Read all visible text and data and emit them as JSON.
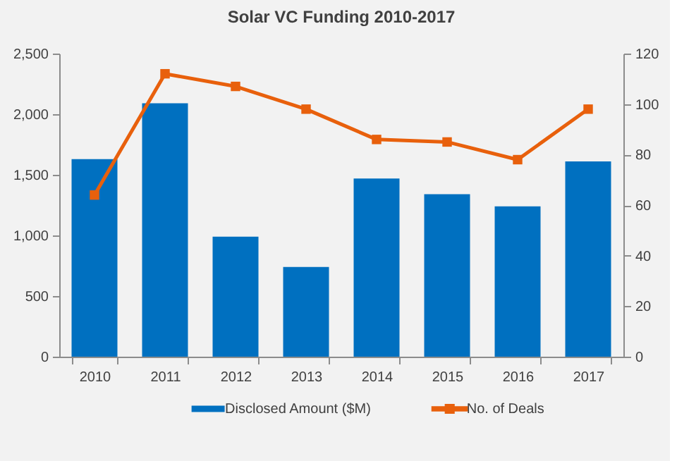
{
  "chart_data": {
    "type": "bar",
    "title": "Solar VC Funding 2010-2017",
    "categories": [
      "2010",
      "2011",
      "2012",
      "2013",
      "2014",
      "2015",
      "2016",
      "2017"
    ],
    "series": [
      {
        "name": "Disclosed Amount ($M)",
        "color": "#0070c0",
        "values": [
          1630,
          2090,
          990,
          740,
          1470,
          1340,
          1240,
          1610
        ]
      },
      {
        "name": "No. of Deals",
        "type": "line",
        "axis": "y2",
        "color": "#e8600c",
        "marker": "square",
        "values": [
          64,
          112,
          107,
          98,
          86,
          85,
          78,
          98
        ]
      }
    ],
    "ylim": [
      0,
      2500
    ],
    "yticks": [
      0,
      500,
      {
        "value": 1000,
        "label": "1,000"
      },
      {
        "value": 1500,
        "label": "1,500"
      },
      {
        "value": 2000,
        "label": "2,000"
      },
      {
        "value": 2500,
        "label": "2,500"
      }
    ],
    "y2lim": [
      0,
      120
    ],
    "y2ticks": [
      0,
      20,
      40,
      60,
      80,
      100,
      120
    ],
    "grid": false,
    "legend": "bottom"
  }
}
